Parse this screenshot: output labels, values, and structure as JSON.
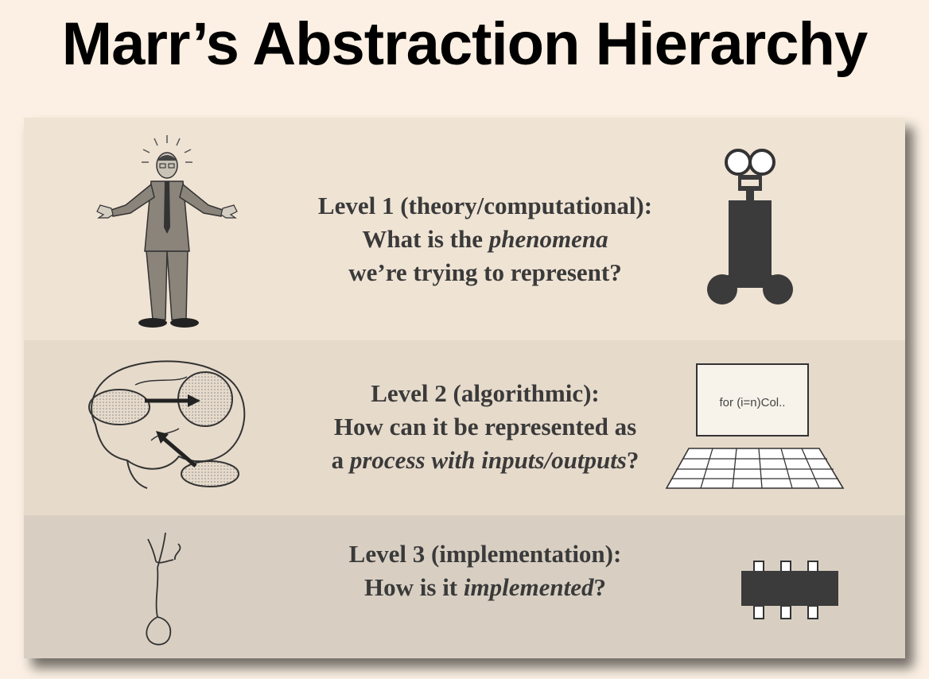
{
  "title": "Marr’s Abstraction Hierarchy",
  "levels": [
    {
      "heading": "Level 1 (theory/computational):",
      "line2_pre": "What is the ",
      "line2_em": "phenomena",
      "line2_post": "",
      "line3": "we’re trying to represent?",
      "left_icon": "confused-man-icon",
      "right_icon": "robot-icon"
    },
    {
      "heading": "Level 2 (algorithmic):",
      "line2": "How can it be represented as",
      "line3_pre": "a ",
      "line3_em": "process with inputs/outputs",
      "line3_post": "?",
      "left_icon": "brain-flow-icon",
      "right_icon": "computer-icon",
      "screen_text": "for (i=n)Col.."
    },
    {
      "heading": "Level 3 (implementation):",
      "line2_pre": "How is it ",
      "line2_em": "implemented",
      "line2_post": "?",
      "left_icon": "neuron-icon",
      "right_icon": "chip-icon"
    }
  ],
  "colors": {
    "background": "#fbf0e3",
    "band1": "#efe3d4",
    "band2": "#e6dacb",
    "band3": "#d8cfc2",
    "text": "#3a3a3a",
    "icon": "#3b3b3b"
  }
}
